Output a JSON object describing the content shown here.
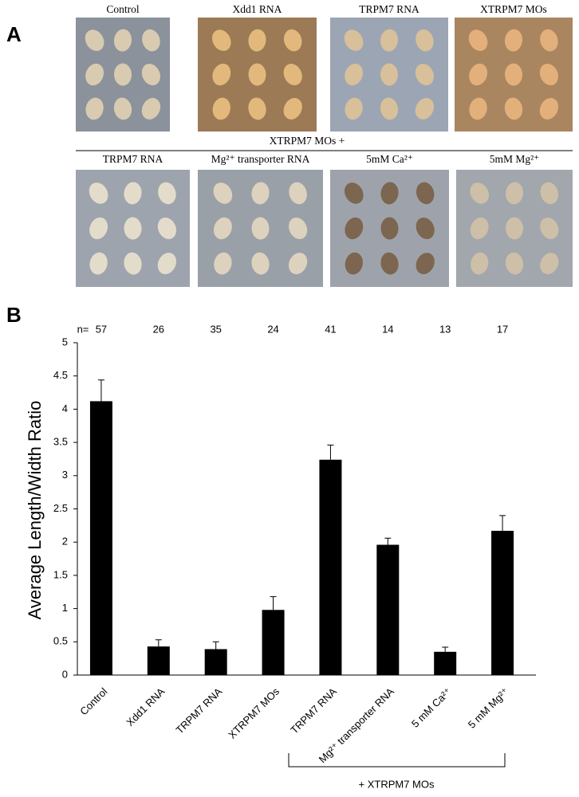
{
  "panel_a": {
    "label": "A",
    "row1_titles": [
      "Control",
      "Xdd1 RNA",
      "TRPM7 RNA",
      "XTRPM7 MOs"
    ],
    "group_label": "XTRPM7 MOs +",
    "row2_titles": [
      "TRPM7 RNA",
      "Mg²⁺ transporter RNA",
      "5mM Ca²⁺",
      "5mM Mg²⁺"
    ]
  },
  "panel_b": {
    "label": "B"
  },
  "chart_data": {
    "type": "bar",
    "y_label": "Average Length/Width Ratio",
    "categories": [
      "Control",
      "Xdd1 RNA",
      "TRPM7 RNA",
      "XTRPM7 MOs",
      "TRPM7 RNA",
      "Mg²⁺ transporter RNA",
      "5 mM Ca²⁺",
      "5 mM Mg²⁺"
    ],
    "values": [
      4.12,
      0.43,
      0.39,
      0.98,
      3.24,
      1.96,
      0.35,
      2.17
    ],
    "errors": [
      0.32,
      0.1,
      0.11,
      0.2,
      0.22,
      0.1,
      0.07,
      0.23
    ],
    "color": "#000000",
    "ylim": [
      0,
      5
    ],
    "yticks": [
      0,
      0.5,
      1,
      1.5,
      2,
      2.5,
      3,
      3.5,
      4,
      4.5,
      5
    ],
    "n_label": "n=",
    "n_values": [
      57,
      26,
      35,
      24,
      41,
      14,
      13,
      17
    ],
    "group_label": "+ XTRPM7 MOs"
  }
}
